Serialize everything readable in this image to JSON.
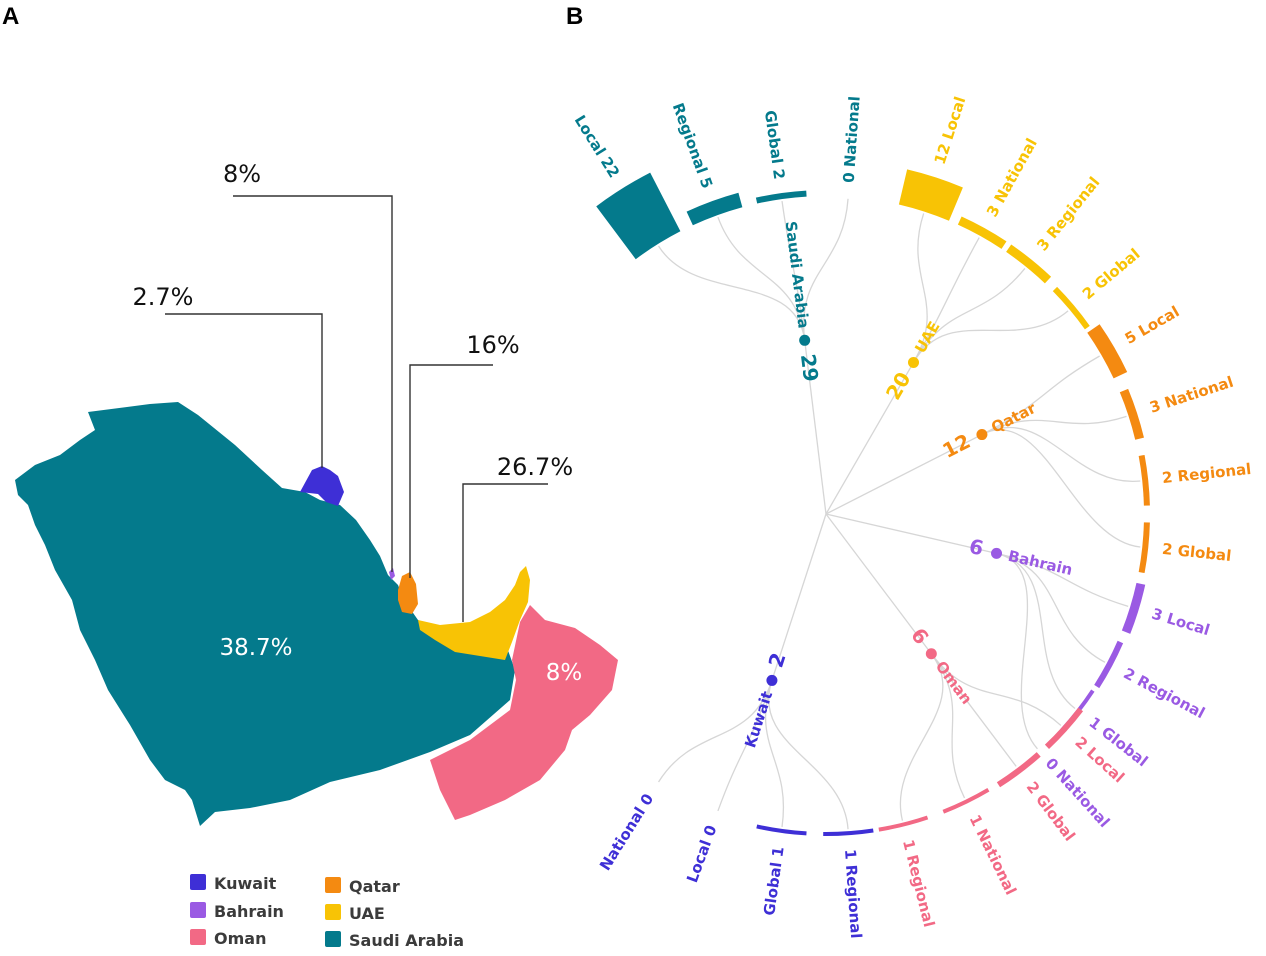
{
  "panels": {
    "a": "A",
    "b": "B"
  },
  "colors": {
    "kuwait": "#3e2fd6",
    "bahrain": "#9a5ae3",
    "oman": "#f26985",
    "qatar": "#f48a11",
    "uae": "#f8c305",
    "saudi": "#047a8c"
  },
  "map": {
    "callouts": {
      "bahrain": "8%",
      "kuwait": "2.7%",
      "qatar": "16%",
      "uae": "26.7%"
    },
    "labels": {
      "saudi": "38.7%",
      "oman": "8%"
    }
  },
  "legend": [
    {
      "key": "kuwait",
      "label": "Kuwait"
    },
    {
      "key": "bahrain",
      "label": "Bahrain"
    },
    {
      "key": "oman",
      "label": "Oman"
    },
    {
      "key": "qatar",
      "label": "Qatar"
    },
    {
      "key": "uae",
      "label": "UAE"
    },
    {
      "key": "saudi",
      "label": "Saudi Arabia"
    }
  ],
  "tree": {
    "countries": [
      {
        "key": "saudi",
        "name": "Saudi Arabia",
        "count": "29",
        "leaves": [
          {
            "text": "Local 22",
            "value": 22
          },
          {
            "text": "Regional 5",
            "value": 5
          },
          {
            "text": "Global 2",
            "value": 2
          },
          {
            "text": "0 National",
            "value": 0
          }
        ]
      },
      {
        "key": "uae",
        "name": "UAE",
        "count": "20",
        "leaves": [
          {
            "text": "12 Local",
            "value": 12
          },
          {
            "text": "3 National",
            "value": 3
          },
          {
            "text": "3 Regional",
            "value": 3
          },
          {
            "text": "2 Global",
            "value": 2
          }
        ]
      },
      {
        "key": "qatar",
        "name": "Qatar",
        "count": "12",
        "leaves": [
          {
            "text": "5 Local",
            "value": 5
          },
          {
            "text": "3 National",
            "value": 3
          },
          {
            "text": "2 Regional",
            "value": 2
          },
          {
            "text": "2 Global",
            "value": 2
          }
        ]
      },
      {
        "key": "bahrain",
        "name": "Bahrain",
        "count": "6",
        "leaves": [
          {
            "text": "3 Local",
            "value": 3
          },
          {
            "text": "2 Regional",
            "value": 2
          },
          {
            "text": "1 Global",
            "value": 1
          },
          {
            "text": "0 National",
            "value": 0
          }
        ]
      },
      {
        "key": "oman",
        "name": "Oman",
        "count": "6",
        "leaves": [
          {
            "text": "2 Local",
            "value": 2
          },
          {
            "text": "2 Global",
            "value": 2
          },
          {
            "text": "1 National",
            "value": 1
          },
          {
            "text": "1 Regional",
            "value": 1
          }
        ]
      },
      {
        "key": "kuwait",
        "name": "Kuwait",
        "count": "2",
        "leaves": [
          {
            "text": "1 Regional",
            "value": 1
          },
          {
            "text": "Global 1",
            "value": 1
          },
          {
            "text": "Local 0",
            "value": 0
          },
          {
            "text": "National 0",
            "value": 0
          }
        ]
      }
    ]
  }
}
